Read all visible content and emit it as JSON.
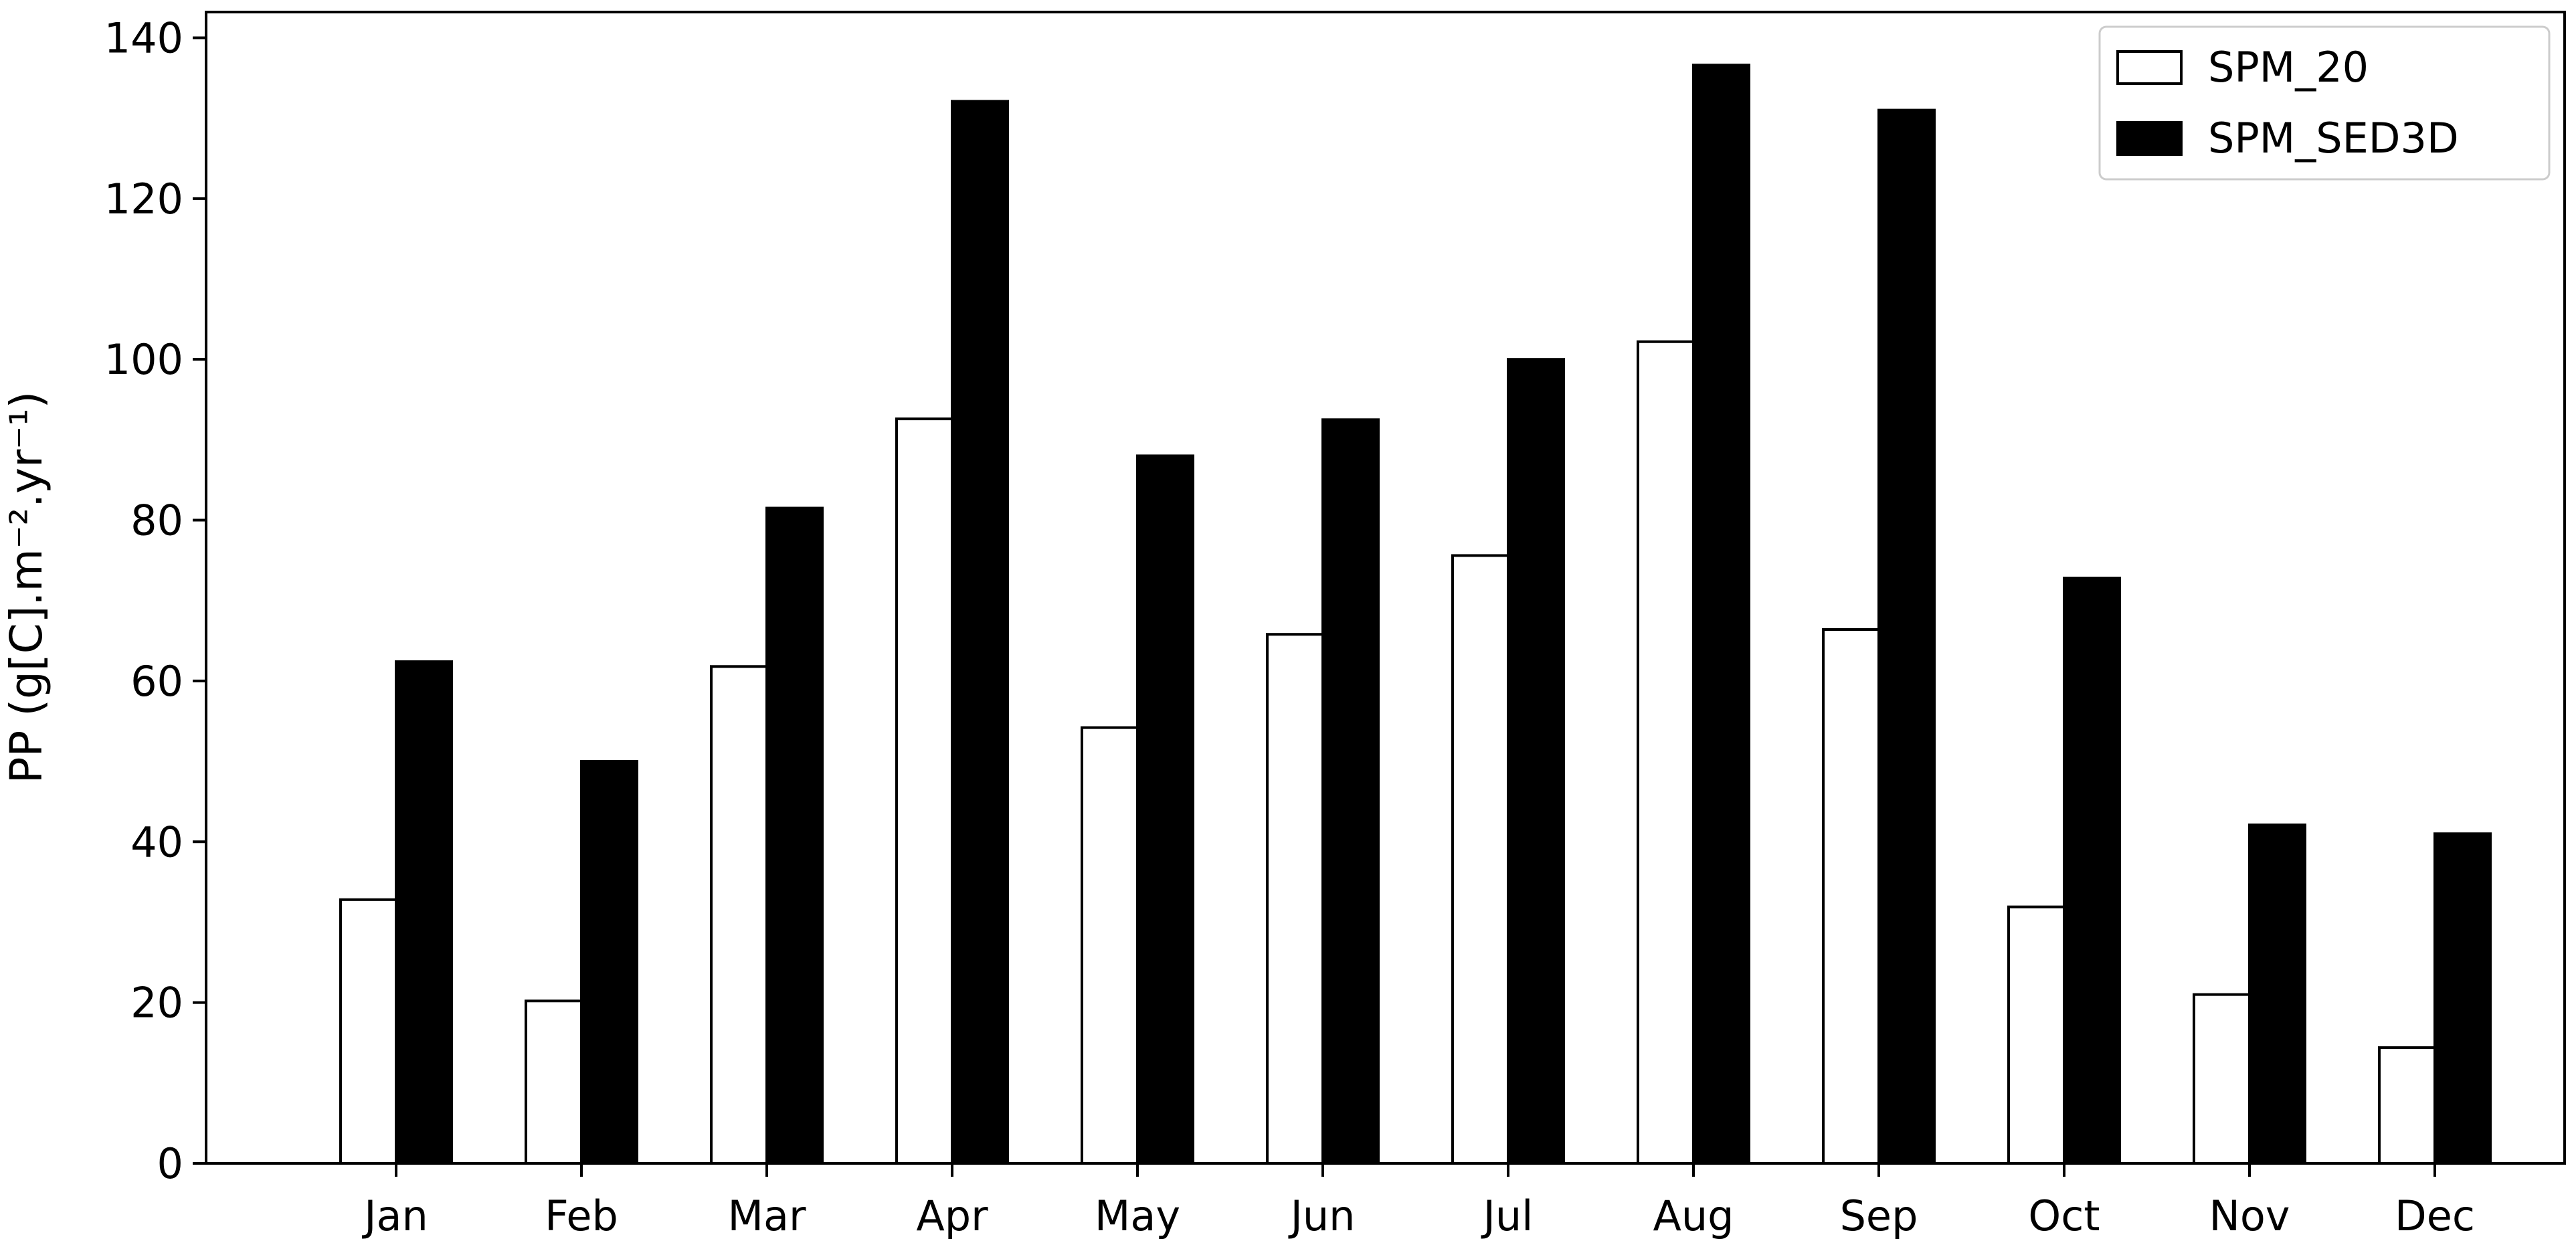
{
  "chart_data": {
    "type": "bar",
    "title": "",
    "xlabel": "",
    "ylabel": "PP (g[C].m⁻².yr⁻¹)",
    "ylim": [
      0,
      140
    ],
    "yticks": [
      "0",
      "20",
      "40",
      "60",
      "80",
      "100",
      "120",
      "140"
    ],
    "categories": [
      "Jan",
      "Feb",
      "Mar",
      "Apr",
      "May",
      "Jun",
      "Jul",
      "Aug",
      "Sep",
      "Oct",
      "Nov",
      "Dec"
    ],
    "series": [
      {
        "name": "SPM_20",
        "fill": "#ffffff",
        "stroke": "#000000",
        "values": [
          32.8,
          20.2,
          61.8,
          92.6,
          54.2,
          65.8,
          75.6,
          102.2,
          66.4,
          31.9,
          21.0,
          14.4
        ]
      },
      {
        "name": "SPM_SED3D",
        "fill": "#000000",
        "stroke": "#000000",
        "values": [
          62.4,
          50.0,
          81.5,
          132.1,
          88.0,
          92.5,
          100.0,
          136.6,
          131.0,
          72.8,
          42.1,
          41.0
        ]
      }
    ],
    "legend_position": "top-right",
    "grid": false
  }
}
